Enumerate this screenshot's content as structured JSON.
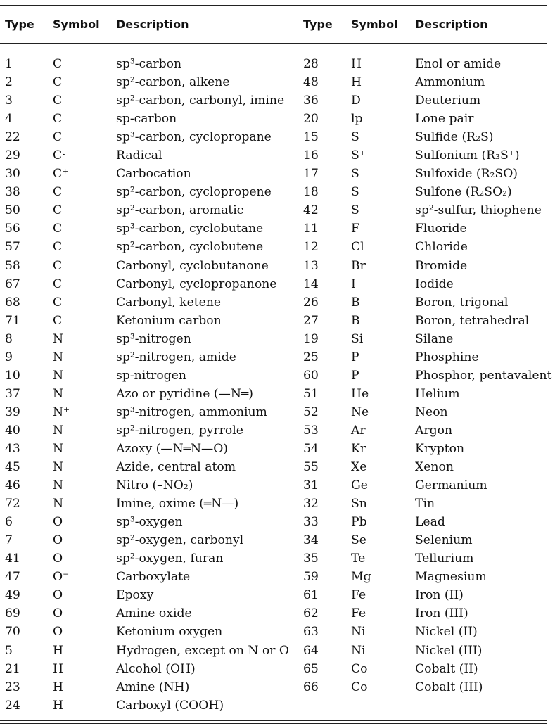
{
  "headers": [
    "Type",
    "Symbol",
    "Description",
    "Type",
    "Symbol",
    "Description"
  ],
  "rows": [
    [
      "1",
      "C",
      "sp³-carbon",
      "28",
      "H",
      "Enol or amide"
    ],
    [
      "2",
      "C",
      "sp²-carbon, alkene",
      "48",
      "H",
      "Ammonium"
    ],
    [
      "3",
      "C",
      "sp²-carbon, carbonyl, imine",
      "36",
      "D",
      "Deuterium"
    ],
    [
      "4",
      "C",
      "sp-carbon",
      "20",
      "lp",
      "Lone pair"
    ],
    [
      "22",
      "C",
      "sp³-carbon, cyclopropane",
      "15",
      "S",
      "Sulfide (R₂S)"
    ],
    [
      "29",
      "C·",
      "Radical",
      "16",
      "S⁺",
      "Sulfonium (R₃S⁺)"
    ],
    [
      "30",
      "C⁺",
      "Carbocation",
      "17",
      "S",
      "Sulfoxide (R₂SO)"
    ],
    [
      "38",
      "C",
      "sp²-carbon, cyclopropene",
      "18",
      "S",
      "Sulfone (R₂SO₂)"
    ],
    [
      "50",
      "C",
      "sp²-carbon, aromatic",
      "42",
      "S",
      "sp²-sulfur, thiophene"
    ],
    [
      "56",
      "C",
      "sp³-carbon, cyclobutane",
      "11",
      "F",
      "Fluoride"
    ],
    [
      "57",
      "C",
      "sp²-carbon, cyclobutene",
      "12",
      "Cl",
      "Chloride"
    ],
    [
      "58",
      "C",
      "Carbonyl, cyclobutanone",
      "13",
      "Br",
      "Bromide"
    ],
    [
      "67",
      "C",
      "Carbonyl, cyclopropanone",
      "14",
      "I",
      "Iodide"
    ],
    [
      "68",
      "C",
      "Carbonyl, ketene",
      "26",
      "B",
      "Boron, trigonal"
    ],
    [
      "71",
      "C",
      "Ketonium carbon",
      "27",
      "B",
      "Boron, tetrahedral"
    ],
    [
      "8",
      "N",
      "sp³-nitrogen",
      "19",
      "Si",
      "Silane"
    ],
    [
      "9",
      "N",
      "sp²-nitrogen, amide",
      "25",
      "P",
      "Phosphine"
    ],
    [
      "10",
      "N",
      "sp-nitrogen",
      "60",
      "P",
      "Phosphor, pentavalent"
    ],
    [
      "37",
      "N",
      "Azo or pyridine (—N═)",
      "51",
      "He",
      "Helium"
    ],
    [
      "39",
      "N⁺",
      "sp³-nitrogen, ammonium",
      "52",
      "Ne",
      "Neon"
    ],
    [
      "40",
      "N",
      "sp²-nitrogen, pyrrole",
      "53",
      "Ar",
      "Argon"
    ],
    [
      "43",
      "N",
      "Azoxy (—N═N—O)",
      "54",
      "Kr",
      "Krypton"
    ],
    [
      "45",
      "N",
      "Azide, central atom",
      "55",
      "Xe",
      "Xenon"
    ],
    [
      "46",
      "N",
      "Nitro (–NO₂)",
      "31",
      "Ge",
      "Germanium"
    ],
    [
      "72",
      "N",
      "Imine, oxime (═N—)",
      "32",
      "Sn",
      "Tin"
    ],
    [
      "6",
      "O",
      "sp³-oxygen",
      "33",
      "Pb",
      "Lead"
    ],
    [
      "7",
      "O",
      "sp²-oxygen, carbonyl",
      "34",
      "Se",
      "Selenium"
    ],
    [
      "41",
      "O",
      "sp²-oxygen, furan",
      "35",
      "Te",
      "Tellurium"
    ],
    [
      "47",
      "O⁻",
      "Carboxylate",
      "59",
      "Mg",
      "Magnesium"
    ],
    [
      "49",
      "O",
      "Epoxy",
      "61",
      "Fe",
      "Iron (II)"
    ],
    [
      "69",
      "O",
      "Amine oxide",
      "62",
      "Fe",
      "Iron (III)"
    ],
    [
      "70",
      "O",
      "Ketonium oxygen",
      "63",
      "Ni",
      "Nickel (II)"
    ],
    [
      "5",
      "H",
      "Hydrogen, except on N or O",
      "64",
      "Ni",
      "Nickel (III)"
    ],
    [
      "21",
      "H",
      "Alcohol (OH)",
      "65",
      "Co",
      "Cobalt (II)"
    ],
    [
      "23",
      "H",
      "Amine (NH)",
      "66",
      "Co",
      "Cobalt (III)"
    ],
    [
      "24",
      "H",
      "Carboxyl (COOH)",
      "",
      "",
      ""
    ]
  ]
}
